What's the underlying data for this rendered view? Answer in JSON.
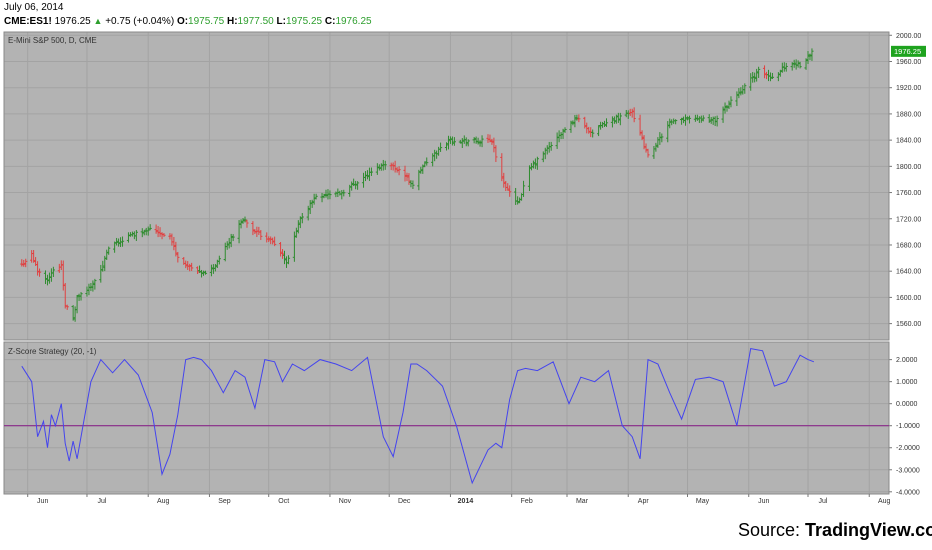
{
  "header": {
    "date": "July 06, 2014",
    "symbol": "CME:ES1!",
    "last": "1976.25",
    "change": "+0.75 (+0.04%)",
    "open_label": "O:",
    "open": "1975.75",
    "high_label": "H:",
    "high": "1977.50",
    "low_label": "L:",
    "low": "1975.25",
    "close_label": "C:",
    "close": "1976.25"
  },
  "colors": {
    "background": "#b3b3b3",
    "grid": "#a3a3a3",
    "up_bar": "#2e8b2e",
    "down_bar": "#e04040",
    "indicator_line": "#4444ee",
    "threshold_line": "#8a2a8a",
    "price_tag": "#1fa31f"
  },
  "source": {
    "prefix": "Source: ",
    "name": "TradingView.com"
  },
  "chart_data": [
    {
      "type": "ohlc",
      "title": "E-Mini S&P 500, D, CME",
      "x_tick_labels": [
        "Jun",
        "Jul",
        "Aug",
        "Sep",
        "Oct",
        "Nov",
        "Dec",
        "2014",
        "Feb",
        "Mar",
        "Apr",
        "May",
        "Jun",
        "Jul",
        "Aug"
      ],
      "y_tick_labels": [
        "2000.00",
        "1960.00",
        "1920.00",
        "1880.00",
        "1840.00",
        "1800.00",
        "1760.00",
        "1720.00",
        "1680.00",
        "1640.00",
        "1600.00",
        "1560.00"
      ],
      "ylim": [
        1535,
        2005
      ],
      "last_price_label": "1976.25",
      "grid": true,
      "close_path": [
        [
          "2013-05-29",
          1650
        ],
        [
          "2013-06-03",
          1665
        ],
        [
          "2013-06-06",
          1640
        ],
        [
          "2013-06-11",
          1628
        ],
        [
          "2013-06-14",
          1640
        ],
        [
          "2013-06-18",
          1650
        ],
        [
          "2013-06-20",
          1590
        ],
        [
          "2013-06-24",
          1565
        ],
        [
          "2013-06-26",
          1600
        ],
        [
          "2013-07-01",
          1610
        ],
        [
          "2013-07-08",
          1640
        ],
        [
          "2013-07-12",
          1675
        ],
        [
          "2013-07-22",
          1693
        ],
        [
          "2013-08-01",
          1705
        ],
        [
          "2013-08-06",
          1700
        ],
        [
          "2013-08-12",
          1693
        ],
        [
          "2013-08-16",
          1660
        ],
        [
          "2013-08-22",
          1645
        ],
        [
          "2013-08-28",
          1635
        ],
        [
          "2013-09-03",
          1645
        ],
        [
          "2013-09-10",
          1680
        ],
        [
          "2013-09-18",
          1720
        ],
        [
          "2013-09-24",
          1700
        ],
        [
          "2013-10-01",
          1690
        ],
        [
          "2013-10-08",
          1665
        ],
        [
          "2013-10-10",
          1650
        ],
        [
          "2013-10-17",
          1720
        ],
        [
          "2013-10-25",
          1755
        ],
        [
          "2013-11-07",
          1760
        ],
        [
          "2013-11-19",
          1785
        ],
        [
          "2013-11-29",
          1805
        ],
        [
          "2013-12-06",
          1795
        ],
        [
          "2013-12-13",
          1772
        ],
        [
          "2013-12-18",
          1800
        ],
        [
          "2013-12-31",
          1840
        ],
        [
          "2014-01-15",
          1838
        ],
        [
          "2014-01-22",
          1840
        ],
        [
          "2014-01-27",
          1780
        ],
        [
          "2014-02-03",
          1745
        ],
        [
          "2014-02-05",
          1750
        ],
        [
          "2014-02-10",
          1795
        ],
        [
          "2014-02-20",
          1830
        ],
        [
          "2014-03-06",
          1875
        ],
        [
          "2014-03-14",
          1850
        ],
        [
          "2014-03-20",
          1865
        ],
        [
          "2014-04-03",
          1885
        ],
        [
          "2014-04-08",
          1840
        ],
        [
          "2014-04-11",
          1815
        ],
        [
          "2014-04-22",
          1865
        ],
        [
          "2014-05-02",
          1875
        ],
        [
          "2014-05-15",
          1870
        ],
        [
          "2014-05-23",
          1900
        ],
        [
          "2014-06-06",
          1945
        ],
        [
          "2014-06-13",
          1935
        ],
        [
          "2014-06-20",
          1955
        ],
        [
          "2014-06-27",
          1955
        ],
        [
          "2014-07-03",
          1976
        ]
      ]
    },
    {
      "type": "line",
      "title": "Z-Score Strategy (20, -1)",
      "y_tick_labels": [
        "2.0000",
        "1.0000",
        "0.0000",
        "-1.0000",
        "-2.0000",
        "-3.0000",
        "-4.0000"
      ],
      "ylim": [
        -4.1,
        2.8
      ],
      "reference_value": -1,
      "grid": true,
      "series": [
        {
          "x": [
            "2013-05-29",
            "2013-06-03",
            "2013-06-06",
            "2013-06-09",
            "2013-06-11",
            "2013-06-13",
            "2013-06-15",
            "2013-06-18",
            "2013-06-20",
            "2013-06-22",
            "2013-06-24",
            "2013-06-26",
            "2013-06-29",
            "2013-07-03",
            "2013-07-08",
            "2013-07-14",
            "2013-07-20",
            "2013-07-27",
            "2013-08-03",
            "2013-08-08",
            "2013-08-12",
            "2013-08-16",
            "2013-08-20",
            "2013-08-24",
            "2013-08-28",
            "2013-09-02",
            "2013-09-08",
            "2013-09-14",
            "2013-09-19",
            "2013-09-24",
            "2013-09-29",
            "2013-10-04",
            "2013-10-08",
            "2013-10-13",
            "2013-10-19",
            "2013-10-27",
            "2013-11-04",
            "2013-11-12",
            "2013-11-20",
            "2013-11-28",
            "2013-12-03",
            "2013-12-08",
            "2013-12-12",
            "2013-12-15",
            "2013-12-20",
            "2013-12-28",
            "2014-01-04",
            "2014-01-12",
            "2014-01-20",
            "2014-01-24",
            "2014-01-27",
            "2014-01-31",
            "2014-02-04",
            "2014-02-08",
            "2014-02-14",
            "2014-02-22",
            "2014-03-02",
            "2014-03-08",
            "2014-03-15",
            "2014-03-22",
            "2014-03-29",
            "2014-04-03",
            "2014-04-07",
            "2014-04-11",
            "2014-04-16",
            "2014-04-22",
            "2014-04-28",
            "2014-05-05",
            "2014-05-12",
            "2014-05-19",
            "2014-05-26",
            "2014-06-02",
            "2014-06-08",
            "2014-06-14",
            "2014-06-20",
            "2014-06-27",
            "2014-07-01",
            "2014-07-04"
          ],
          "y": [
            1.7,
            1.0,
            -1.5,
            -0.8,
            -2.0,
            -0.5,
            -1.0,
            0.0,
            -1.8,
            -2.6,
            -1.7,
            -2.5,
            -1.0,
            1.0,
            2.0,
            1.4,
            2.0,
            1.3,
            -0.4,
            -3.2,
            -2.3,
            -0.5,
            2.0,
            2.1,
            2.0,
            1.5,
            0.5,
            1.5,
            1.2,
            -0.2,
            2.0,
            1.9,
            1.0,
            1.8,
            1.5,
            2.0,
            1.8,
            1.5,
            2.1,
            -1.5,
            -2.4,
            -0.4,
            1.8,
            1.8,
            1.5,
            0.8,
            -1.0,
            -3.6,
            -2.1,
            -1.8,
            -2.0,
            0.2,
            1.5,
            1.6,
            1.5,
            1.9,
            0.0,
            1.2,
            1.0,
            1.5,
            -1.0,
            -1.5,
            -2.5,
            2.0,
            1.8,
            0.5,
            -0.7,
            1.1,
            1.2,
            1.0,
            -1.0,
            2.5,
            2.4,
            0.8,
            1.0,
            2.2,
            2.0,
            1.9
          ]
        }
      ]
    }
  ]
}
